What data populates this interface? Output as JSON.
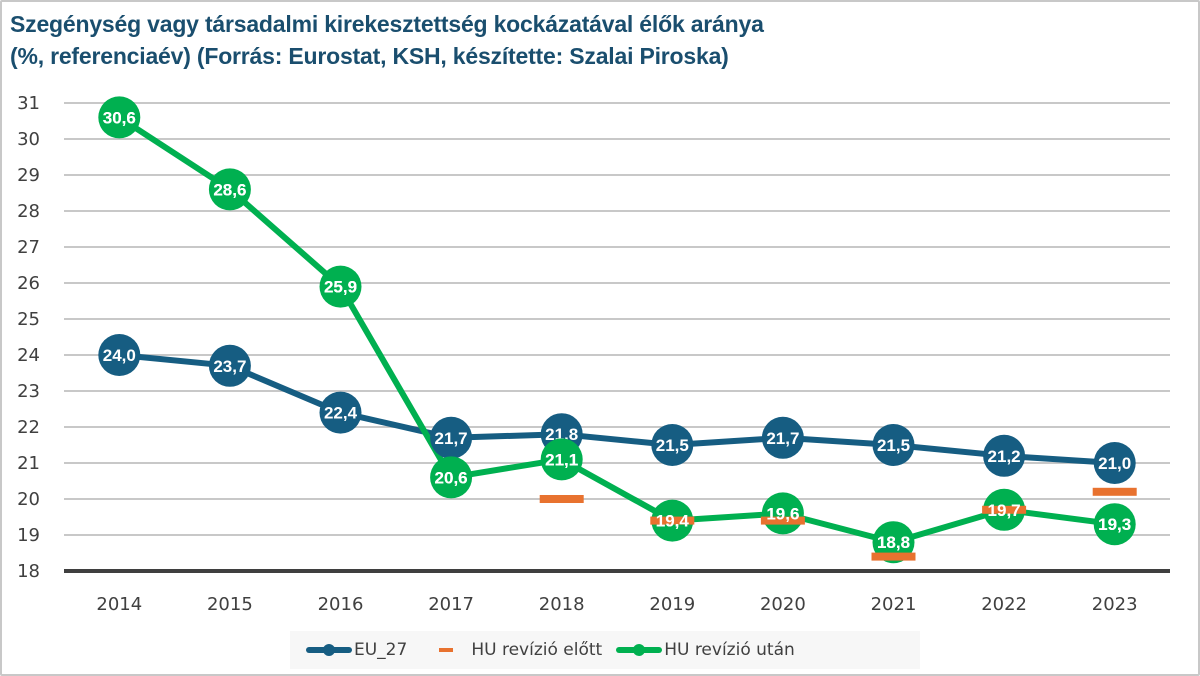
{
  "title_line1": "Szegénység vagy társadalmi kirekesztettség kockázatával élők aránya",
  "title_line2": "(%, referenciaév) (Forrás: Eurostat, KSH, készítette: Szalai Piroska)",
  "colors": {
    "eu": "#165d82",
    "hu_before": "#e8722f",
    "hu_after": "#00b050",
    "grid": "#c8c8c8",
    "axis": "#3f3f3f"
  },
  "legend": {
    "eu": "EU_27",
    "hu_before": "HU revízió előtt",
    "hu_after": "HU revízió után"
  },
  "chart_data": {
    "type": "line",
    "title": "Szegénység vagy társadalmi kirekesztettség kockázatával élők aránya (%, referenciaév) (Forrás: Eurostat, KSH, készítette: Szalai Piroska)",
    "xlabel": "",
    "ylabel": "",
    "categories": [
      "2014",
      "2015",
      "2016",
      "2017",
      "2018",
      "2019",
      "2020",
      "2021",
      "2022",
      "2023"
    ],
    "ylim": [
      18,
      31
    ],
    "yticks": [
      18,
      19,
      20,
      21,
      22,
      23,
      24,
      25,
      26,
      27,
      28,
      29,
      30,
      31
    ],
    "grid": true,
    "legend_position": "bottom",
    "series": [
      {
        "name": "EU_27",
        "style": "line-marker",
        "values": [
          24.0,
          23.7,
          22.4,
          21.7,
          21.8,
          21.5,
          21.7,
          21.5,
          21.2,
          21.0
        ],
        "labels": [
          "24,0",
          "23,7",
          "22,4",
          "21,7",
          "21,8",
          "21,5",
          "21,7",
          "21,5",
          "21,2",
          "21,0"
        ]
      },
      {
        "name": "HU revízió előtt",
        "style": "dash-marker",
        "values": [
          null,
          null,
          null,
          null,
          20.0,
          19.4,
          19.4,
          18.4,
          19.7,
          20.2
        ]
      },
      {
        "name": "HU revízió után",
        "style": "line-marker",
        "values": [
          30.6,
          28.6,
          25.9,
          20.6,
          21.1,
          19.4,
          19.6,
          18.8,
          19.7,
          19.3
        ],
        "labels": [
          "30,6",
          "28,6",
          "25,9",
          "20,6",
          "21,1",
          "19,4",
          "19,6",
          "18,8",
          "19,7",
          "19,3"
        ]
      }
    ]
  }
}
